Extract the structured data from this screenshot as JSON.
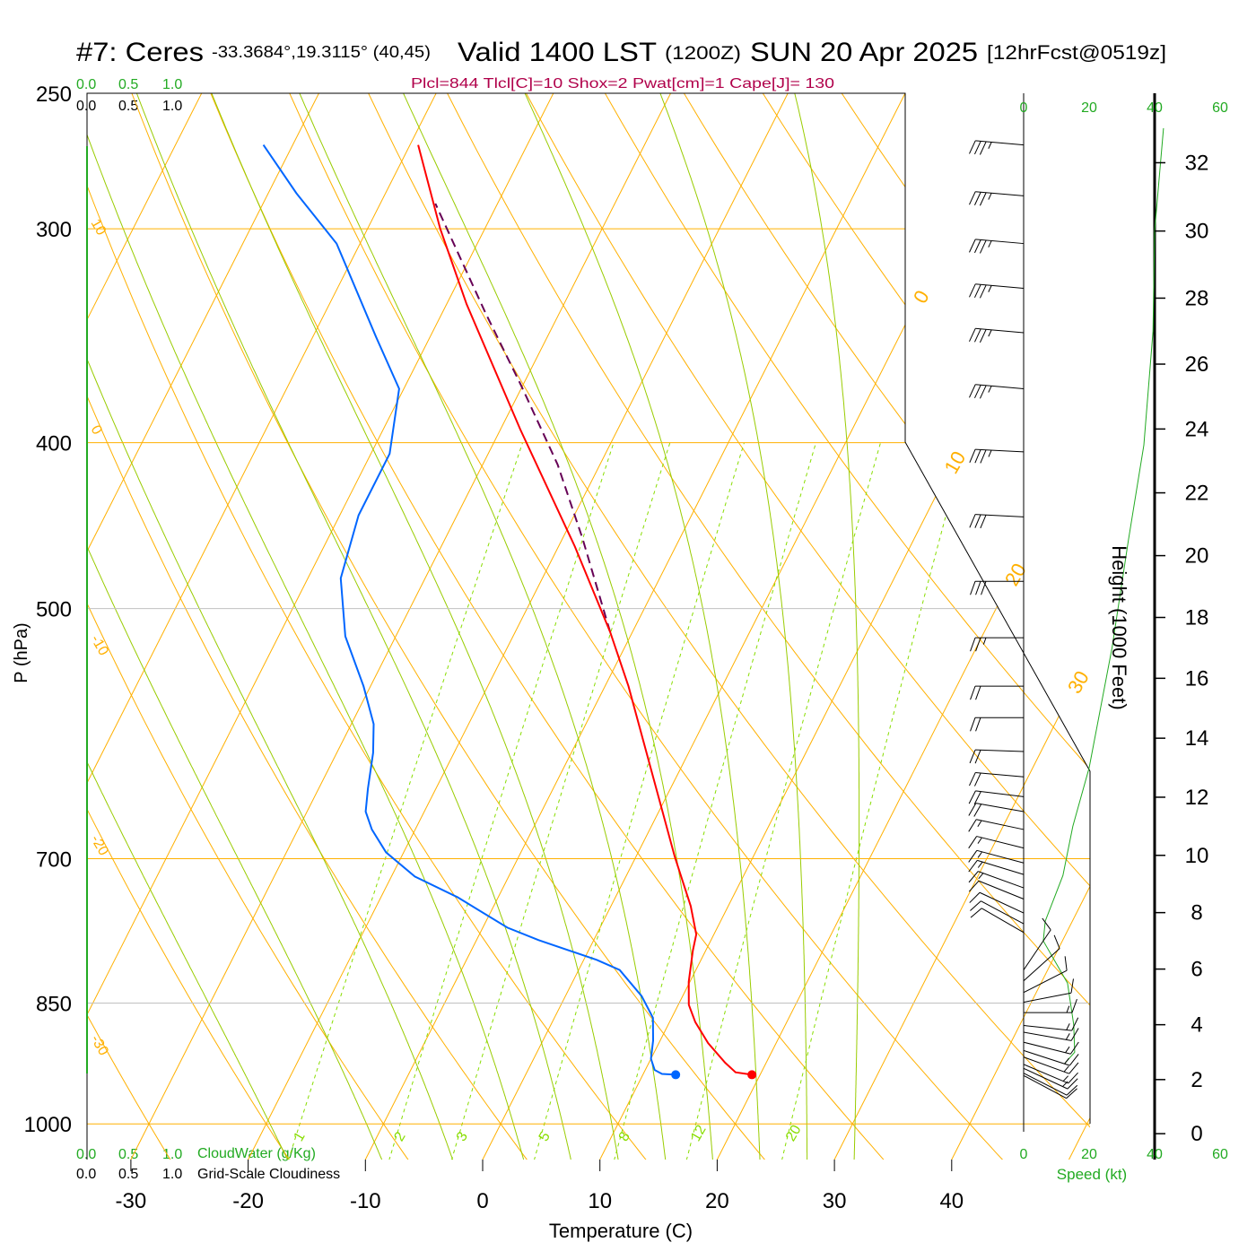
{
  "title": {
    "station": "#7: Ceres",
    "coords": "-33.3684°,19.3115° (40,45)",
    "valid": "Valid 1400 LST",
    "utc": "(1200Z)",
    "date": "SUN 20 Apr 2025",
    "forecast": "[12hrFcst@0519z]"
  },
  "indices": "Plcl=844 Tlcl[C]=10 Shox=2 Pwat[cm]=1 Cape[J]= 130",
  "cloud_scale": {
    "ticks": [
      "0.0",
      "0.5",
      "1.0"
    ],
    "cloudwater_label": "CloudWater (g/Kg)",
    "cloudiness_label": "Grid-Scale Cloudiness"
  },
  "colors": {
    "isotherm": "#ffb000",
    "moist_adiabat": "#99cc00",
    "mixing_ratio": "#88dd00",
    "temperature": "#ff0000",
    "dewpoint": "#0066ff",
    "parcel": "#660055",
    "indices": "#b0004a",
    "speed": "#22aa22",
    "scale_green": "#22aa22",
    "gray_line": "#c0c0c0"
  },
  "chart_data": {
    "type": "line",
    "subtype": "skew-t log-p",
    "xlabel": "Temperature (C)",
    "ylabel": "P (hPa)",
    "pressure_ticks": [
      "250",
      "300",
      "400",
      "500",
      "700",
      "850",
      "1000"
    ],
    "temperature_ticks": [
      "-30",
      "-20",
      "-10",
      "0",
      "10",
      "20",
      "30",
      "40"
    ],
    "isotherm_labels": [
      "0",
      "10",
      "20",
      "30"
    ],
    "dry_adiabat_labels": [
      "10",
      "0",
      "-10",
      "-20",
      "-30"
    ],
    "mixing_ratio_labels": [
      "1",
      "2",
      "3",
      "5",
      "8",
      "12",
      "20"
    ],
    "grid": true,
    "temperature": {
      "name": "Temperature",
      "p": [
        936,
        933,
        921,
        897,
        872,
        852,
        826,
        792,
        775,
        746,
        698,
        555,
        516,
        460,
        393,
        332,
        300,
        268
      ],
      "t": [
        19.3,
        17.8,
        16.5,
        14.2,
        12.2,
        10.9,
        9.9,
        8.9,
        8.5,
        6.8,
        3.3,
        -8.0,
        -11.9,
        -18.6,
        -28.3,
        -38.3,
        -43.8,
        -49.3
      ]
    },
    "dewpoint": {
      "name": "Dewpoint",
      "p": [
        936,
        935,
        930,
        916,
        894,
        867,
        842,
        813,
        802,
        781,
        768,
        737,
        717,
        694,
        673,
        657,
        637,
        607,
        584,
        555,
        519,
        480,
        441,
        406,
        372,
        347,
        306,
        286,
        268
      ],
      "t": [
        12.8,
        11.6,
        10.8,
        10.0,
        9.4,
        8.4,
        6.5,
        3.5,
        1.1,
        -4.7,
        -7.9,
        -13.5,
        -18.0,
        -21.5,
        -23.7,
        -25.0,
        -25.8,
        -26.9,
        -28.1,
        -30.6,
        -34.3,
        -37.2,
        -38.4,
        -38.4,
        -40.4,
        -44.6,
        -52.0,
        -57.6,
        -62.5
      ]
    },
    "parcel": {
      "name": "Parcel",
      "p": [
        516,
        455,
        412,
        370,
        336,
        290
      ],
      "t": [
        -11.9,
        -18.3,
        -23.6,
        -30.2,
        -36.3,
        -45.3
      ]
    },
    "surface": {
      "p": 936,
      "temperature": 19.3,
      "dewpoint": 12.8
    },
    "wind_barbs": [
      {
        "p": 268,
        "dir": 275,
        "kt": 35
      },
      {
        "p": 287,
        "dir": 275,
        "kt": 35
      },
      {
        "p": 306,
        "dir": 275,
        "kt": 35
      },
      {
        "p": 325,
        "dir": 275,
        "kt": 35
      },
      {
        "p": 345,
        "dir": 275,
        "kt": 35
      },
      {
        "p": 372,
        "dir": 275,
        "kt": 35
      },
      {
        "p": 405,
        "dir": 273,
        "kt": 35
      },
      {
        "p": 442,
        "dir": 273,
        "kt": 30
      },
      {
        "p": 482,
        "dir": 270,
        "kt": 30
      },
      {
        "p": 520,
        "dir": 270,
        "kt": 25
      },
      {
        "p": 555,
        "dir": 270,
        "kt": 20
      },
      {
        "p": 579,
        "dir": 270,
        "kt": 20
      },
      {
        "p": 606,
        "dir": 272,
        "kt": 20
      },
      {
        "p": 627,
        "dir": 275,
        "kt": 20
      },
      {
        "p": 644,
        "dir": 277,
        "kt": 20
      },
      {
        "p": 657,
        "dir": 280,
        "kt": 20
      },
      {
        "p": 673,
        "dir": 282,
        "kt": 15
      },
      {
        "p": 690,
        "dir": 284,
        "kt": 15
      },
      {
        "p": 704,
        "dir": 285,
        "kt": 15
      },
      {
        "p": 715,
        "dir": 287,
        "kt": 15
      },
      {
        "p": 728,
        "dir": 290,
        "kt": 15
      },
      {
        "p": 739,
        "dir": 292,
        "kt": 10
      },
      {
        "p": 753,
        "dir": 295,
        "kt": 10
      },
      {
        "p": 764,
        "dir": 298,
        "kt": 10
      },
      {
        "p": 773,
        "dir": 300,
        "kt": 10
      },
      {
        "p": 813,
        "dir": 34,
        "kt": 10
      },
      {
        "p": 825,
        "dir": 48,
        "kt": 10
      },
      {
        "p": 838,
        "dir": 63,
        "kt": 10
      },
      {
        "p": 849,
        "dir": 79,
        "kt": 10
      },
      {
        "p": 861,
        "dir": 90,
        "kt": 15
      },
      {
        "p": 876,
        "dir": 96,
        "kt": 15
      },
      {
        "p": 884,
        "dir": 100,
        "kt": 15
      },
      {
        "p": 896,
        "dir": 104,
        "kt": 15
      },
      {
        "p": 906,
        "dir": 108,
        "kt": 15
      },
      {
        "p": 914,
        "dir": 110,
        "kt": 15
      },
      {
        "p": 923,
        "dir": 113,
        "kt": 15
      },
      {
        "p": 928,
        "dir": 115,
        "kt": 15
      },
      {
        "p": 934,
        "dir": 117,
        "kt": 10
      },
      {
        "p": 937,
        "dir": 118,
        "kt": 10
      }
    ],
    "speed_profile": {
      "height_kft": [
        2.6,
        3.0,
        4.0,
        5.5,
        7.0,
        7.7,
        9.3,
        11,
        13,
        17,
        20.5,
        23.5,
        27,
        30,
        33
      ],
      "speed_kt": [
        12.6,
        15.6,
        15.3,
        13.4,
        6.0,
        6.6,
        12,
        15,
        20,
        27,
        32,
        36.7,
        39.5,
        40,
        42.7
      ]
    },
    "height_axis": {
      "label": "Height (1000 Feet)",
      "ticks": [
        "0",
        "2",
        "4",
        "6",
        "8",
        "10",
        "12",
        "14",
        "16",
        "18",
        "20",
        "22",
        "24",
        "26",
        "28",
        "30",
        "32"
      ]
    },
    "speed_axis": {
      "label": "Speed (kt)",
      "ticks": [
        "0",
        "20",
        "40",
        "60"
      ]
    }
  }
}
